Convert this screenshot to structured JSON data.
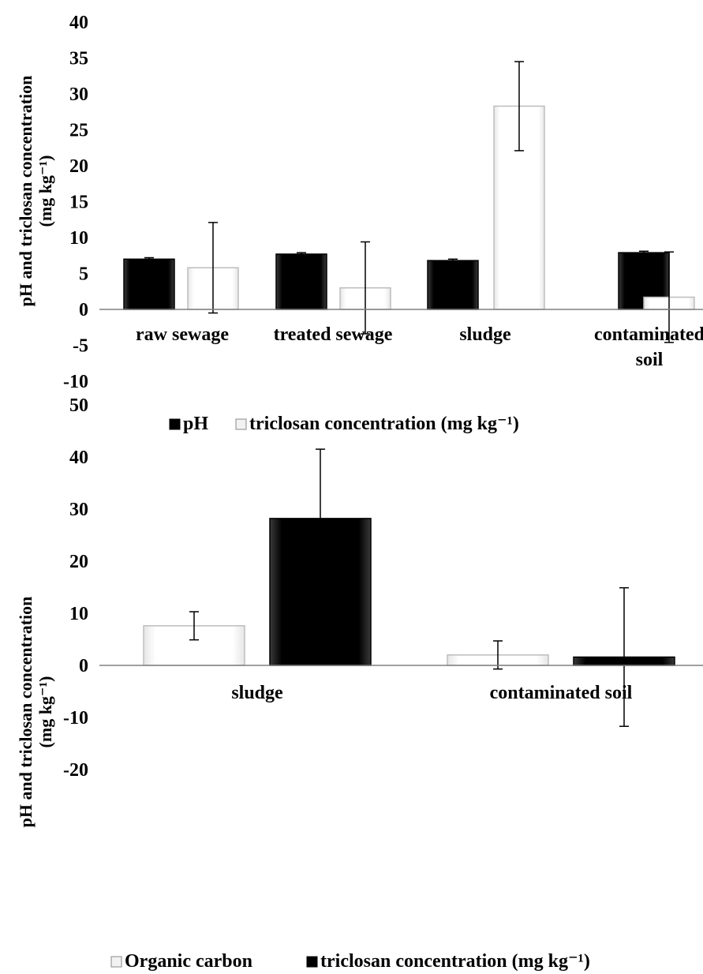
{
  "chart_data": [
    {
      "type": "bar",
      "ylabel_line1": "pH and triclosan concentration",
      "ylabel_line2": "(mg kg⁻¹)",
      "ylim": [
        -10,
        40
      ],
      "yticks": [
        40,
        35,
        30,
        25,
        20,
        15,
        10,
        5,
        0,
        -5,
        -10
      ],
      "categories": [
        "raw sewage",
        "treated sewage",
        "sludge",
        "contaminated soil"
      ],
      "category_label_lines": [
        [
          "raw sewage"
        ],
        [
          "treated sewage"
        ],
        [
          "sludge"
        ],
        [
          "contaminated",
          "soil"
        ]
      ],
      "series": [
        {
          "name": "pH",
          "color": "#000000",
          "values": [
            7.0,
            7.7,
            6.8,
            7.9
          ],
          "errors": [
            0.2,
            0.2,
            0.2,
            0.2
          ]
        },
        {
          "name": "triclosan concentration (mg kg⁻¹)",
          "color": "#ffffff",
          "values": [
            5.8,
            3.0,
            28.3,
            1.7
          ],
          "errors": [
            6.3,
            6.4,
            6.2,
            6.3
          ]
        }
      ],
      "legend_position": "bottom"
    },
    {
      "type": "bar",
      "ylabel_line1": "pH and triclosan concentration",
      "ylabel_line2": "(mg kg⁻¹)",
      "ylim": [
        -20,
        50
      ],
      "yticks": [
        50,
        40,
        30,
        20,
        10,
        0,
        -10,
        -20
      ],
      "categories": [
        "sludge",
        "contaminated soil"
      ],
      "category_label_lines": [
        [
          "sludge"
        ],
        [
          "contaminated soil"
        ]
      ],
      "series": [
        {
          "name": "Organic carbon",
          "color": "#ffffff",
          "values": [
            7.6,
            2.0
          ],
          "errors": [
            2.7,
            2.7
          ]
        },
        {
          "name": "triclosan concentration (mg kg⁻¹)",
          "color": "#000000",
          "values": [
            28.2,
            1.6
          ],
          "errors": [
            13.3,
            13.3
          ]
        }
      ],
      "legend_position": "bottom"
    }
  ]
}
